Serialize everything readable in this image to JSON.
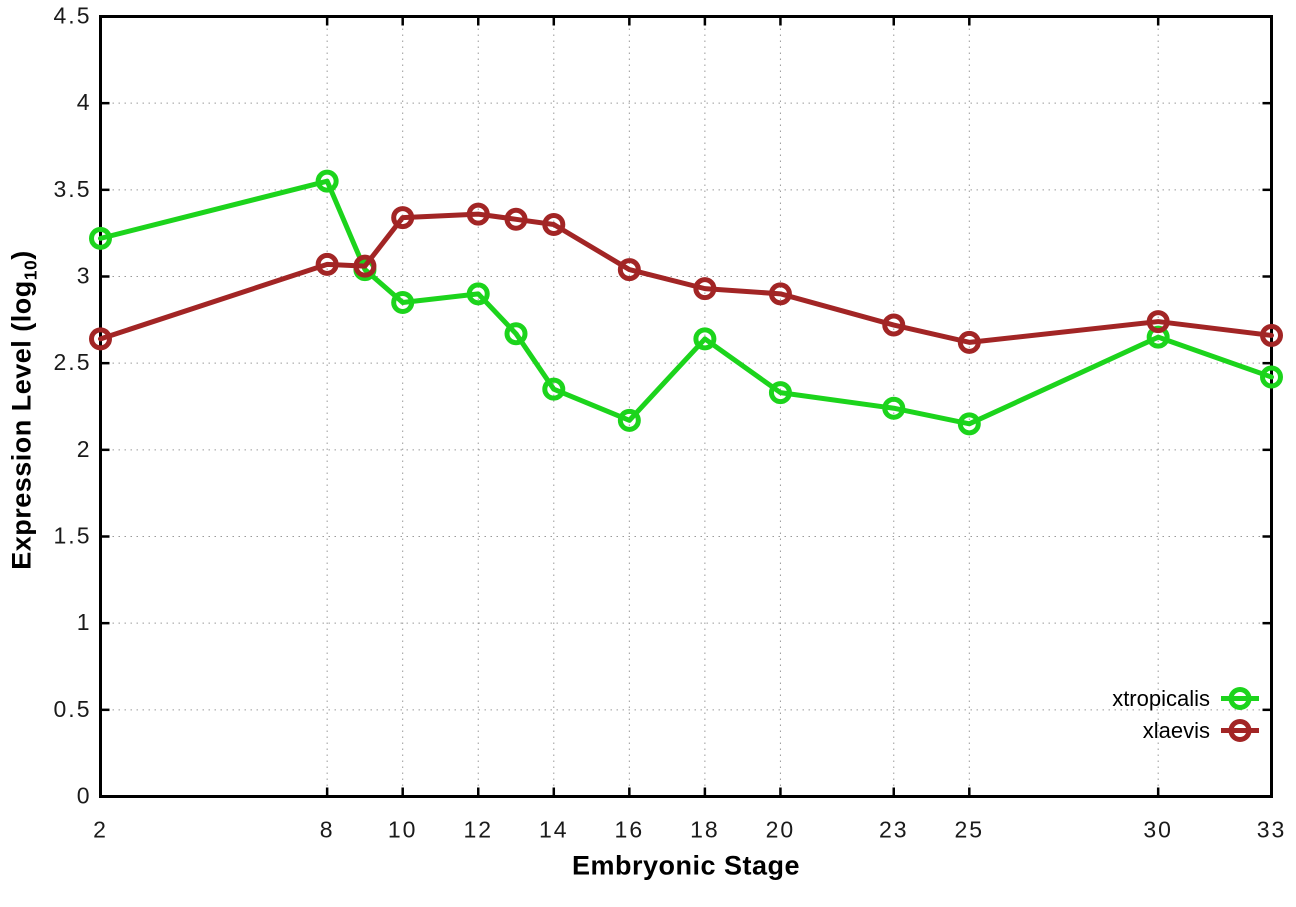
{
  "figure": {
    "background": "#ffffff",
    "xlabel": "Embryonic Stage",
    "ylabel_prefix": "Expression Level (log",
    "ylabel_sub": "10",
    "ylabel_suffix": ")"
  },
  "chart_data": {
    "type": "line",
    "title": "",
    "xlabel": "Embryonic Stage",
    "ylabel": "Expression Level (log10)",
    "x": [
      2,
      8,
      9,
      10,
      12,
      13,
      14,
      16,
      18,
      20,
      23,
      25,
      30,
      33
    ],
    "series": [
      {
        "name": "xtropicalis",
        "color": "#1cd41c",
        "values": [
          3.22,
          3.55,
          3.04,
          2.85,
          2.9,
          2.67,
          2.35,
          2.17,
          2.64,
          2.33,
          2.24,
          2.15,
          2.65,
          2.42
        ]
      },
      {
        "name": "xlaevis",
        "color": "#a22525",
        "values": [
          2.64,
          3.07,
          3.06,
          3.34,
          3.36,
          3.33,
          3.3,
          3.04,
          2.93,
          2.9,
          2.72,
          2.62,
          2.74,
          2.66
        ]
      }
    ],
    "xlim": [
      2,
      33
    ],
    "ylim": [
      0,
      4.5
    ],
    "xtick_values": [
      2,
      8,
      10,
      12,
      14,
      16,
      18,
      20,
      23,
      25,
      30,
      33
    ],
    "xtick_labels": [
      "2",
      "8",
      "10",
      "12",
      "14",
      "16",
      "18",
      "20",
      "23",
      "25",
      "30",
      "33"
    ],
    "ytick_values": [
      0,
      0.5,
      1,
      1.5,
      2,
      2.5,
      3,
      3.5,
      4,
      4.5
    ],
    "ytick_labels": [
      "0",
      "0.5",
      "1",
      "1.5",
      "2",
      "2.5",
      "3",
      "3.5",
      "4",
      "4.5"
    ],
    "grid": true,
    "grid_style": "dotted",
    "grid_color": "#9a9a9a",
    "axis_color": "#000000",
    "tick_label_color": "#1a1a1a",
    "marker": "open-circle",
    "line_width": 5,
    "marker_radius": 9,
    "legend_position": "bottom-right-inside"
  }
}
